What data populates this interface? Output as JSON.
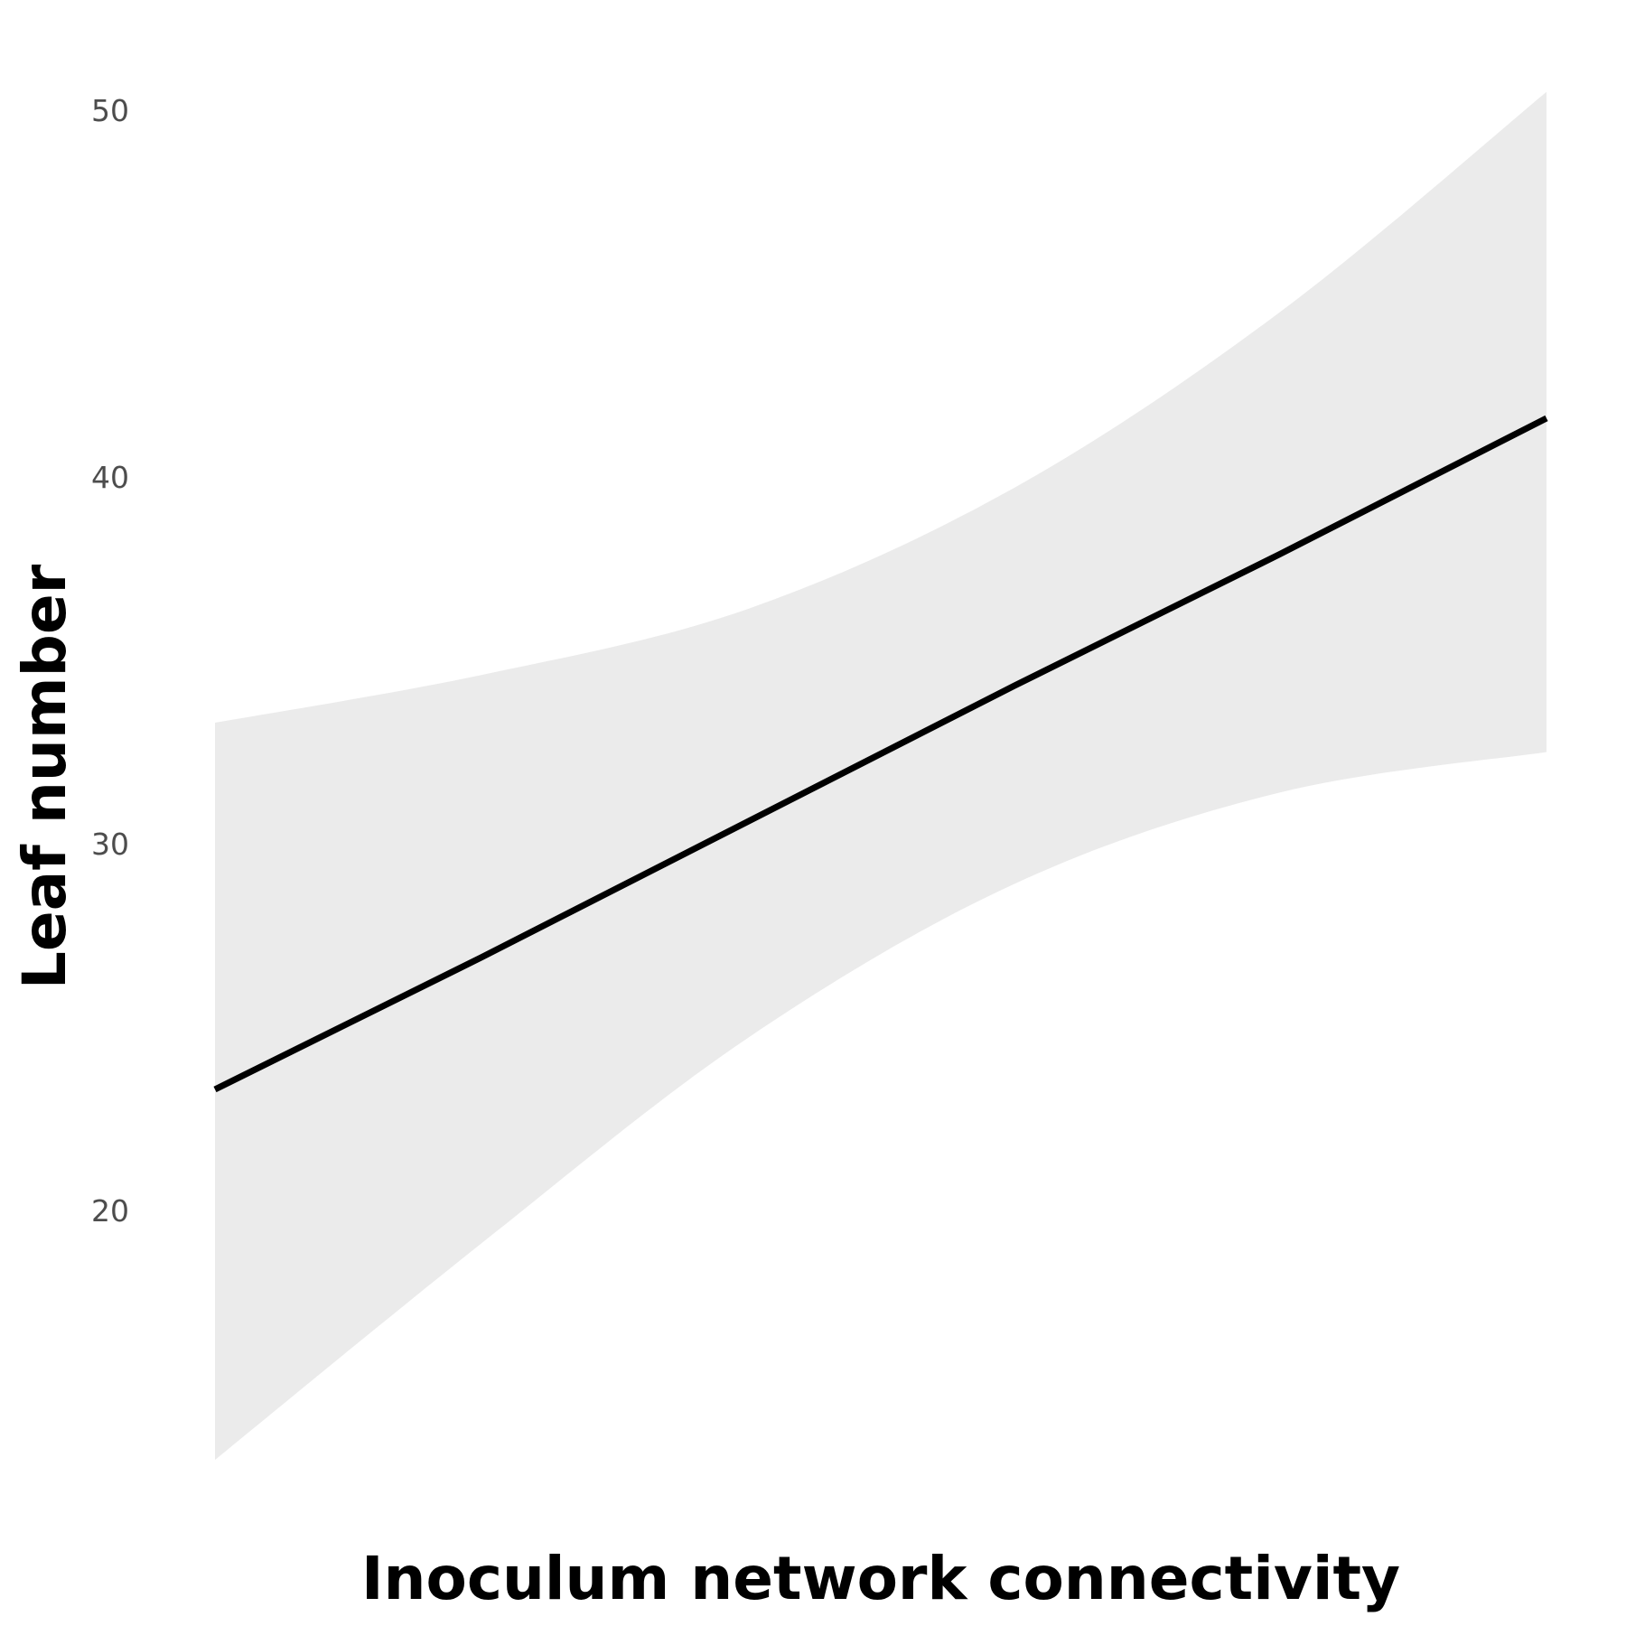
{
  "chart_data": {
    "type": "line",
    "title": "",
    "xlabel": "Inoculum network connectivity",
    "ylabel": "Leaf number",
    "x_ticks_shown": false,
    "x": [
      0.0,
      0.2,
      0.4,
      0.6,
      0.8,
      1.0
    ],
    "ylim": [
      13,
      52
    ],
    "yticks": [
      20,
      30,
      40,
      50
    ],
    "grid": false,
    "legend": "none",
    "series": [
      {
        "kind": "fit",
        "color": "#000000",
        "values": [
          23.3,
          26.9,
          30.6,
          34.3,
          37.9,
          41.6
        ]
      },
      {
        "kind": "confidence-band",
        "color": "#ebebeb",
        "upper": [
          33.3,
          34.6,
          36.4,
          39.7,
          44.5,
          50.5
        ],
        "lower": [
          13.2,
          19.1,
          24.7,
          28.9,
          31.4,
          32.5
        ]
      }
    ]
  }
}
